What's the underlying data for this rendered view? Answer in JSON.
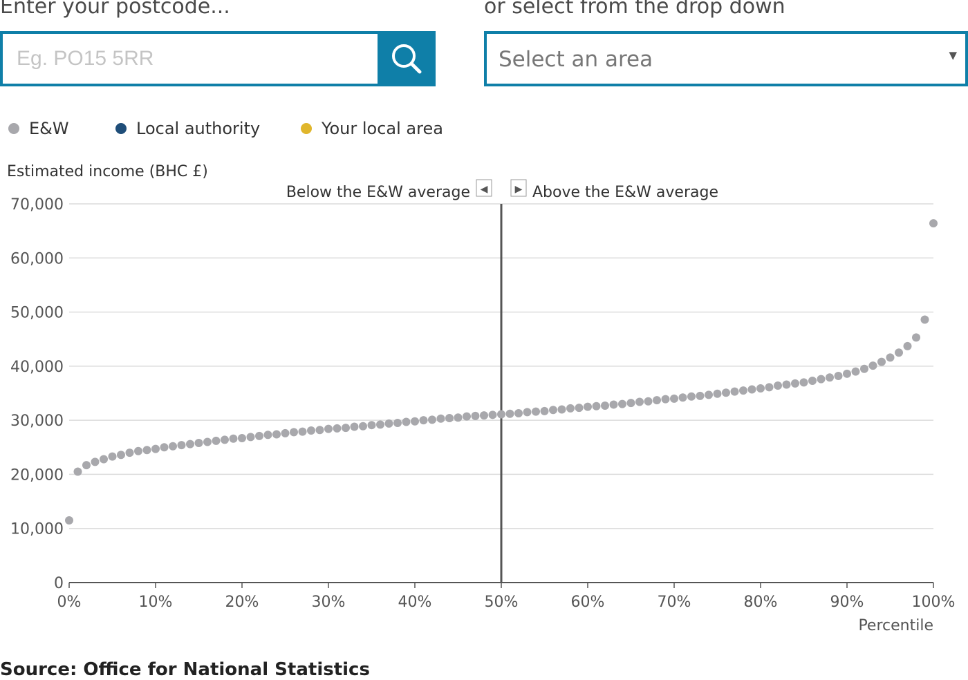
{
  "search": {
    "postcode_label": "Enter your postcode...",
    "postcode_placeholder": "Eg. PO15 5RR",
    "dropdown_label": "or select from the drop down",
    "dropdown_value": "Select an area"
  },
  "legend": [
    {
      "label": "E&W",
      "color": "#a8a8ac"
    },
    {
      "label": "Local authority",
      "color": "#1f4e79"
    },
    {
      "label": "Your local area",
      "color": "#e0b62c"
    }
  ],
  "chart_data": {
    "type": "scatter",
    "ylabel": "Estimated income (BHC £)",
    "xlabel": "Percentile",
    "annotation_left": "Below the E&W average",
    "annotation_right": "Above the E&W average",
    "reference_line_x": 50,
    "xlim": [
      0,
      100
    ],
    "ylim": [
      0,
      70000
    ],
    "xticks": [
      0,
      10,
      20,
      30,
      40,
      50,
      60,
      70,
      80,
      90,
      100
    ],
    "xtick_labels": [
      "0%",
      "10%",
      "20%",
      "30%",
      "40%",
      "50%",
      "60%",
      "70%",
      "80%",
      "90%",
      "100%"
    ],
    "yticks": [
      0,
      10000,
      20000,
      30000,
      40000,
      50000,
      60000,
      70000
    ],
    "ytick_labels": [
      "0",
      "10,000",
      "20,000",
      "30,000",
      "40,000",
      "50,000",
      "60,000",
      "70,000"
    ],
    "grid": true,
    "series": [
      {
        "name": "E&W",
        "color": "#a8a8ac",
        "x": [
          0,
          1,
          2,
          3,
          4,
          5,
          6,
          7,
          8,
          9,
          10,
          11,
          12,
          13,
          14,
          15,
          16,
          17,
          18,
          19,
          20,
          21,
          22,
          23,
          24,
          25,
          26,
          27,
          28,
          29,
          30,
          31,
          32,
          33,
          34,
          35,
          36,
          37,
          38,
          39,
          40,
          41,
          42,
          43,
          44,
          45,
          46,
          47,
          48,
          49,
          50,
          51,
          52,
          53,
          54,
          55,
          56,
          57,
          58,
          59,
          60,
          61,
          62,
          63,
          64,
          65,
          66,
          67,
          68,
          69,
          70,
          71,
          72,
          73,
          74,
          75,
          76,
          77,
          78,
          79,
          80,
          81,
          82,
          83,
          84,
          85,
          86,
          87,
          88,
          89,
          90,
          91,
          92,
          93,
          94,
          95,
          96,
          97,
          98,
          99,
          100
        ],
        "y": [
          11500,
          20500,
          21700,
          22300,
          22800,
          23300,
          23600,
          24000,
          24300,
          24500,
          24700,
          25000,
          25200,
          25400,
          25600,
          25800,
          26000,
          26200,
          26400,
          26600,
          26700,
          26900,
          27100,
          27300,
          27400,
          27600,
          27800,
          27900,
          28100,
          28200,
          28400,
          28500,
          28600,
          28800,
          28900,
          29100,
          29200,
          29400,
          29500,
          29700,
          29800,
          30000,
          30100,
          30300,
          30400,
          30500,
          30700,
          30800,
          30900,
          31000,
          31100,
          31200,
          31300,
          31500,
          31600,
          31700,
          31900,
          32000,
          32200,
          32300,
          32500,
          32600,
          32700,
          32900,
          33000,
          33200,
          33400,
          33500,
          33700,
          33900,
          34000,
          34200,
          34400,
          34500,
          34700,
          34900,
          35100,
          35300,
          35500,
          35700,
          35900,
          36100,
          36400,
          36600,
          36800,
          37000,
          37300,
          37600,
          37900,
          38200,
          38600,
          39000,
          39500,
          40100,
          40800,
          41600,
          42500,
          43700,
          45300,
          48600,
          66400
        ]
      }
    ]
  },
  "source": "Source: Office for National Statistics"
}
